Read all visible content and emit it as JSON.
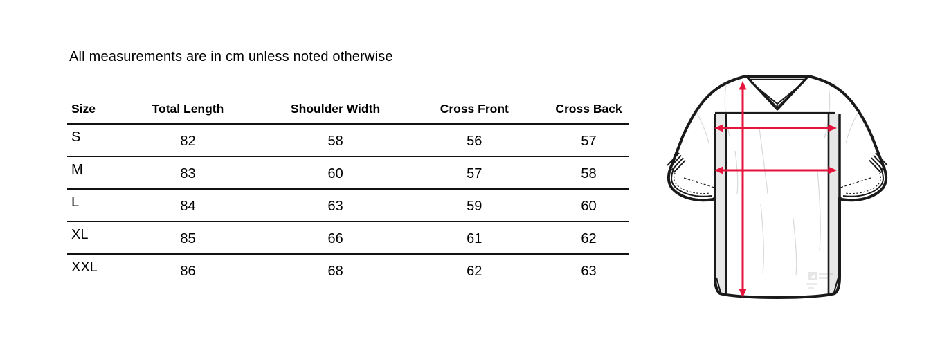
{
  "note": "All measurements are in cm unless noted otherwise",
  "table": {
    "columns": [
      "Size",
      "Total Length",
      "Shoulder Width",
      "Cross Front",
      "Cross Back"
    ],
    "rows": [
      [
        "S",
        "82",
        "58",
        "56",
        "57"
      ],
      [
        "M",
        "83",
        "60",
        "57",
        "58"
      ],
      [
        "L",
        "84",
        "63",
        "59",
        "60"
      ],
      [
        "XL",
        "85",
        "66",
        "61",
        "62"
      ],
      [
        "XXL",
        "86",
        "68",
        "62",
        "63"
      ]
    ]
  },
  "jersey": {
    "arrow_color": "#E6143C",
    "outline_color": "#1a1a1a",
    "panel_color": "#e7e7e7"
  }
}
